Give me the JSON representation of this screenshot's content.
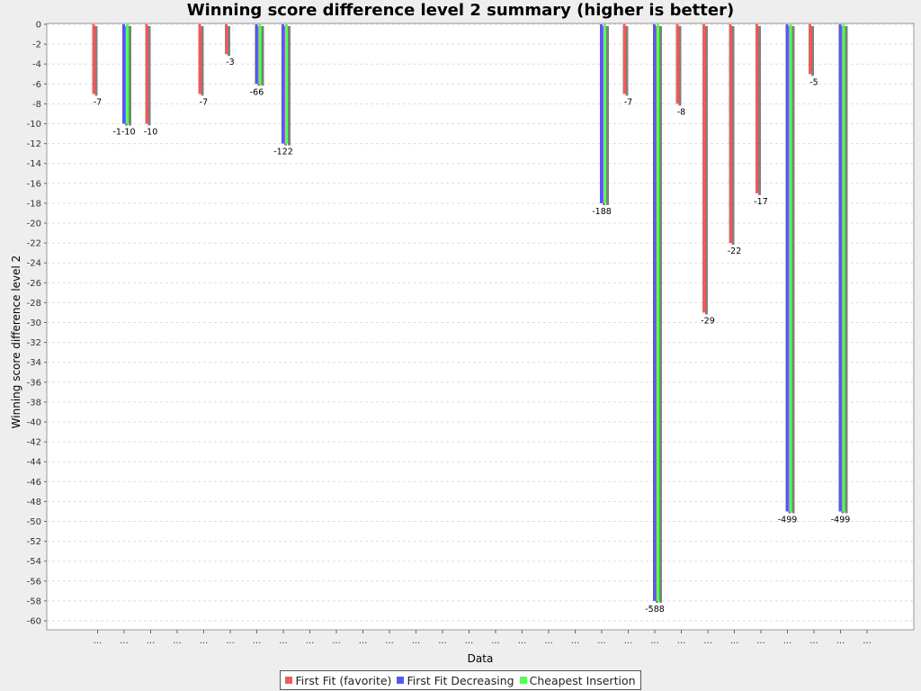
{
  "chart_data": {
    "type": "bar",
    "title": "Winning score difference level 2 summary (higher is better)",
    "xlabel": "Data",
    "ylabel": "Winning score difference level 2",
    "ylim": [
      -61,
      0
    ],
    "ytick_step": 2,
    "grid": true,
    "legend_position": "bottom",
    "categories": [
      "...",
      "...",
      "...",
      "...",
      "...",
      "...",
      "...",
      "...",
      "...",
      "...",
      "...",
      "...",
      "...",
      "...",
      "...",
      "...",
      "...",
      "...",
      "...",
      "...",
      "...",
      "...",
      "...",
      "...",
      "...",
      "...",
      "...",
      "...",
      "...",
      "..."
    ],
    "series": [
      {
        "name": "First Fit (favorite)",
        "color": "#ff5555",
        "values": [
          -7,
          0,
          -10,
          0,
          -7,
          -3,
          0,
          0,
          0,
          0,
          0,
          0,
          0,
          0,
          0,
          0,
          0,
          0,
          0,
          0,
          -7,
          0,
          -8,
          -29,
          -22,
          -17,
          0,
          -5,
          0,
          0
        ]
      },
      {
        "name": "First Fit Decreasing",
        "color": "#5555ff",
        "values": [
          0,
          -10,
          0,
          0,
          0,
          0,
          -6,
          -12,
          0,
          0,
          0,
          0,
          0,
          0,
          0,
          0,
          0,
          0,
          0,
          -18,
          0,
          -58,
          0,
          0,
          0,
          0,
          -49,
          0,
          -49,
          0
        ]
      },
      {
        "name": "Cheapest Insertion",
        "color": "#55ff55",
        "values": [
          0,
          -10,
          0,
          0,
          0,
          0,
          -6,
          -12,
          0,
          0,
          0,
          0,
          0,
          0,
          0,
          0,
          0,
          0,
          0,
          -18,
          0,
          -58,
          0,
          0,
          0,
          0,
          -49,
          0,
          -49,
          0
        ]
      }
    ],
    "bar_labels": [
      {
        "category": 0,
        "text": "-7"
      },
      {
        "category": 1,
        "text": "-1-10"
      },
      {
        "category": 2,
        "text": "-10"
      },
      {
        "category": 4,
        "text": "-7"
      },
      {
        "category": 5,
        "text": "-3"
      },
      {
        "category": 6,
        "text": "-66"
      },
      {
        "category": 7,
        "text": "-122"
      },
      {
        "category": 19,
        "text": "-188"
      },
      {
        "category": 20,
        "text": "-7"
      },
      {
        "category": 21,
        "text": "-588"
      },
      {
        "category": 22,
        "text": "-8"
      },
      {
        "category": 23,
        "text": "-29"
      },
      {
        "category": 24,
        "text": "-22"
      },
      {
        "category": 25,
        "text": "-17"
      },
      {
        "category": 26,
        "text": "-499"
      },
      {
        "category": 27,
        "text": "-5"
      },
      {
        "category": 28,
        "text": "-499"
      }
    ]
  }
}
